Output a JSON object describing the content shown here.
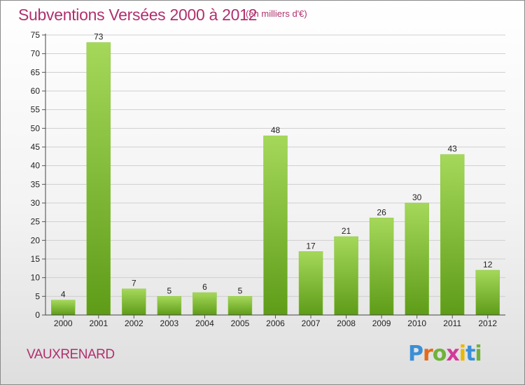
{
  "header": {
    "title": "Subventions Versées 2000 à 2012",
    "subtitle": "(en milliers d'€)"
  },
  "commune": "VAUXRENARD",
  "logo": {
    "text": "Proxiti",
    "letters": [
      "P",
      "r",
      "o",
      "x",
      "i",
      "t",
      "i"
    ],
    "colors": [
      "#3a8fd6",
      "#e46a1c",
      "#6fb23a",
      "#d23a9a",
      "#e8b800",
      "#3a8fd6",
      "#6fb23a"
    ]
  },
  "colors": {
    "accent": "#b0306e",
    "bar_light": "#a5d85a",
    "bar_dark": "#5e9c18"
  },
  "chart_data": {
    "type": "bar",
    "categories": [
      "2000",
      "2001",
      "2002",
      "2003",
      "2004",
      "2005",
      "2006",
      "2007",
      "2008",
      "2009",
      "2010",
      "2011",
      "2012"
    ],
    "values": [
      4,
      73,
      7,
      5,
      6,
      5,
      48,
      17,
      21,
      26,
      30,
      43,
      12
    ],
    "title": "Subventions Versées 2000 à 2012",
    "subtitle": "(en milliers d'€)",
    "xlabel": "",
    "ylabel": "",
    "ylim": [
      0,
      75
    ],
    "yticks": [
      0,
      5,
      10,
      15,
      20,
      25,
      30,
      35,
      40,
      45,
      50,
      55,
      60,
      65,
      70,
      75
    ],
    "grid": true,
    "data_labels": true
  }
}
